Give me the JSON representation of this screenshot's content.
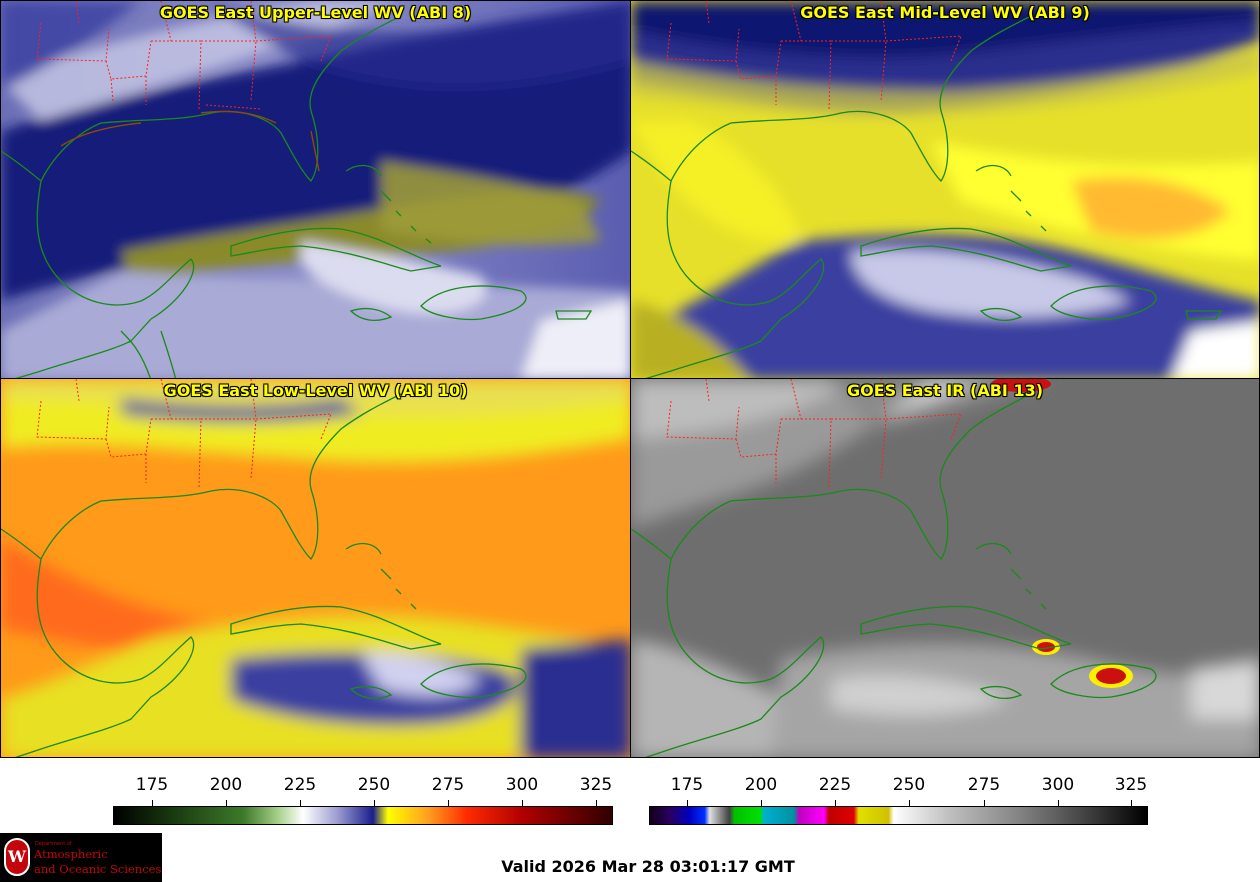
{
  "panels": {
    "upper": {
      "title": "GOES East Upper-Level WV (ABI 8)"
    },
    "mid": {
      "title": "GOES East Mid-Level WV (ABI 9)"
    },
    "low": {
      "title": "GOES East Low-Level WV (ABI 10)"
    },
    "ir": {
      "title": "GOES East IR (ABI 13)"
    }
  },
  "colorbars": {
    "wv": {
      "ticks": [
        "175",
        "200",
        "225",
        "250",
        "275",
        "300",
        "325"
      ]
    },
    "ir": {
      "ticks": [
        "175",
        "200",
        "225",
        "250",
        "275",
        "300",
        "325"
      ]
    }
  },
  "logo": {
    "dept_text": "Department of",
    "name_line1": "Atmospheric",
    "name_line2": "and Oceanic Sciences",
    "seal_letter": "W"
  },
  "footer": {
    "valid": "Valid 2026 Mar 28 03:01:17 GMT"
  },
  "colors": {
    "title": "#ffff00",
    "state_borders": "#ff2020",
    "coastlines": "#1a8a1a"
  }
}
